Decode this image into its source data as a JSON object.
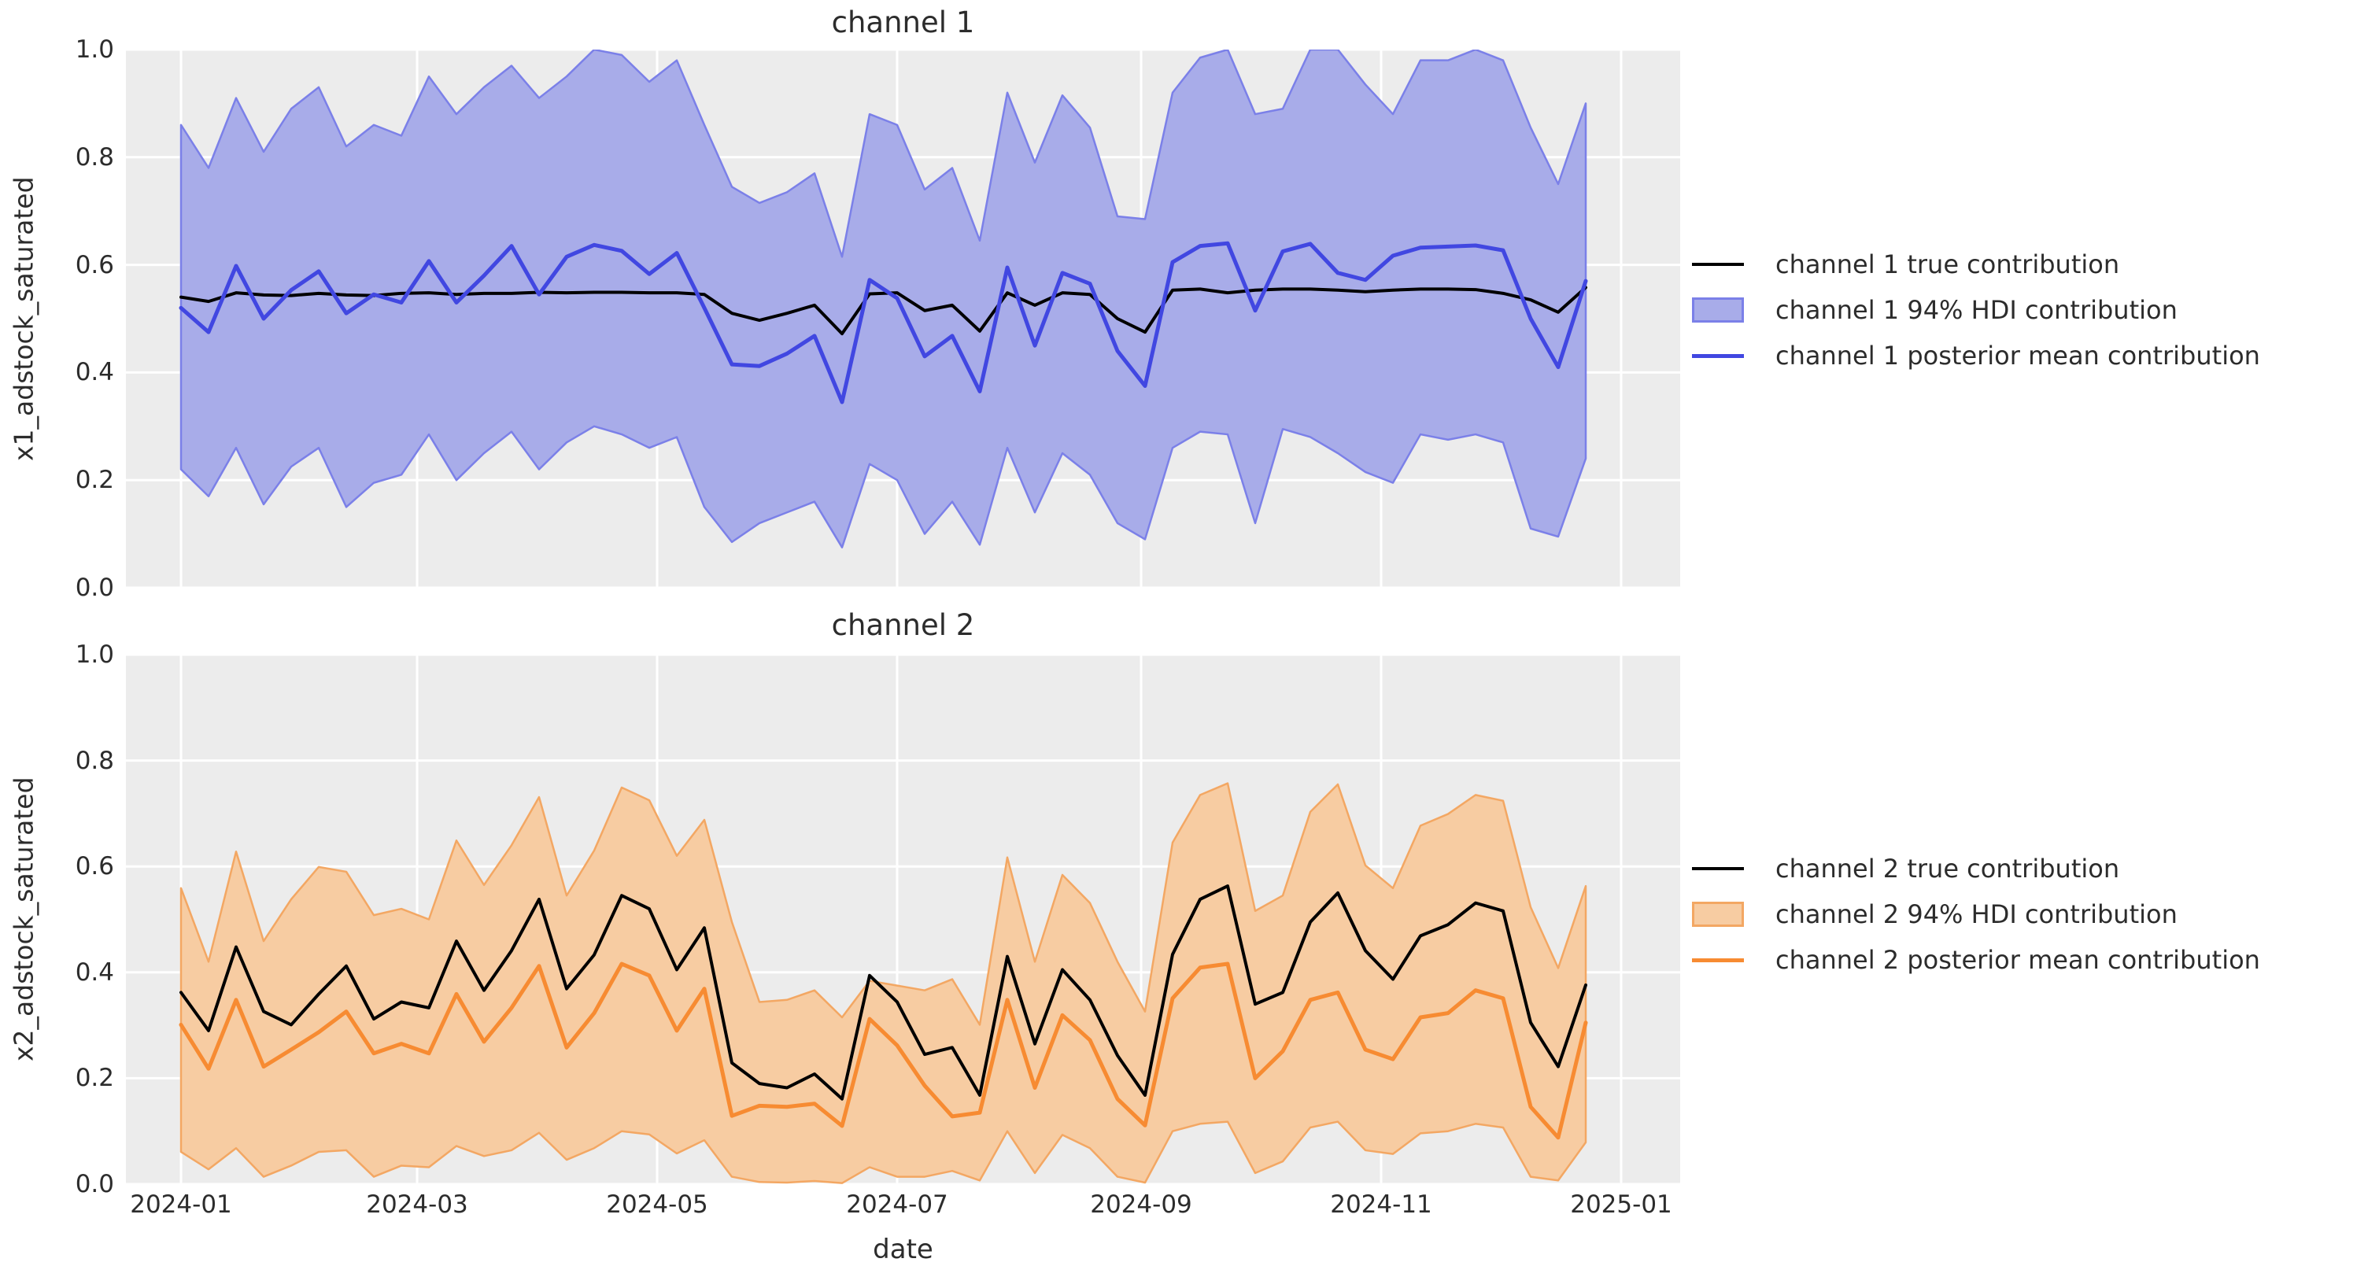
{
  "figure": {
    "background": "#ffffff",
    "plot_background": "#ececec",
    "grid_color": "#ffffff",
    "text_color": "#2c2c2c"
  },
  "xlabel": "date",
  "chart_data": [
    {
      "type": "area",
      "title": "channel 1",
      "ylabel": "x1_adstock_saturated",
      "xlabel": "",
      "ylim": [
        0,
        1
      ],
      "grid": true,
      "legend_position": "right-outside",
      "x_start_date": "2024-01-01",
      "x_step_days": 7,
      "xticks": {
        "labels": [
          "2024-01",
          "2024-03",
          "2024-05",
          "2024-07",
          "2024-09",
          "2024-11",
          "2025-01"
        ],
        "day_offsets": [
          0,
          60,
          121,
          182,
          244,
          305,
          366
        ],
        "show_labels": false
      },
      "yticks": {
        "labels": [
          "0.0",
          "0.2",
          "0.4",
          "0.6",
          "0.8",
          "1.0"
        ],
        "values": [
          0,
          0.2,
          0.4,
          0.6,
          0.8,
          1.0
        ]
      },
      "series": [
        {
          "name": "channel 1 true contribution",
          "kind": "line",
          "color": "#000000",
          "width": 4,
          "values": [
            0.54,
            0.532,
            0.548,
            0.544,
            0.543,
            0.547,
            0.544,
            0.543,
            0.547,
            0.548,
            0.545,
            0.547,
            0.547,
            0.549,
            0.548,
            0.549,
            0.549,
            0.548,
            0.548,
            0.545,
            0.51,
            0.497,
            0.51,
            0.525,
            0.472,
            0.546,
            0.548,
            0.515,
            0.525,
            0.477,
            0.548,
            0.525,
            0.548,
            0.545,
            0.5,
            0.475,
            0.553,
            0.555,
            0.548,
            0.553,
            0.555,
            0.555,
            0.553,
            0.55,
            0.553,
            0.555,
            0.555,
            0.554,
            0.547,
            0.535,
            0.512,
            0.558
          ]
        },
        {
          "name": "channel 1 94% HDI contribution",
          "kind": "band",
          "fill": "#a8ace9",
          "edge": "#7b80e8",
          "lower": [
            0.22,
            0.17,
            0.26,
            0.155,
            0.225,
            0.26,
            0.15,
            0.195,
            0.21,
            0.285,
            0.2,
            0.25,
            0.29,
            0.22,
            0.27,
            0.3,
            0.285,
            0.26,
            0.28,
            0.15,
            0.085,
            0.12,
            0.14,
            0.16,
            0.075,
            0.23,
            0.2,
            0.1,
            0.16,
            0.08,
            0.26,
            0.14,
            0.25,
            0.21,
            0.12,
            0.09,
            0.26,
            0.29,
            0.285,
            0.12,
            0.295,
            0.28,
            0.25,
            0.215,
            0.195,
            0.285,
            0.275,
            0.285,
            0.27,
            0.11,
            0.095,
            0.24
          ],
          "upper": [
            0.86,
            0.78,
            0.91,
            0.81,
            0.89,
            0.93,
            0.82,
            0.86,
            0.84,
            0.95,
            0.88,
            0.93,
            0.97,
            0.91,
            0.95,
            1.0,
            0.99,
            0.94,
            0.98,
            0.86,
            0.745,
            0.715,
            0.735,
            0.77,
            0.615,
            0.88,
            0.86,
            0.74,
            0.78,
            0.645,
            0.92,
            0.79,
            0.915,
            0.855,
            0.69,
            0.685,
            0.92,
            0.985,
            1.0,
            0.88,
            0.89,
            1.0,
            1.0,
            0.935,
            0.88,
            0.98,
            0.98,
            1.0,
            0.98,
            0.855,
            0.75,
            0.9
          ]
        },
        {
          "name": "channel 1 posterior mean contribution",
          "kind": "line",
          "color": "#4147e1",
          "width": 5,
          "values": [
            0.52,
            0.475,
            0.598,
            0.5,
            0.553,
            0.588,
            0.51,
            0.545,
            0.53,
            0.607,
            0.53,
            0.58,
            0.635,
            0.545,
            0.615,
            0.637,
            0.626,
            0.583,
            0.622,
            0.52,
            0.415,
            0.412,
            0.435,
            0.468,
            0.345,
            0.572,
            0.538,
            0.43,
            0.468,
            0.365,
            0.595,
            0.45,
            0.585,
            0.565,
            0.44,
            0.375,
            0.605,
            0.635,
            0.64,
            0.515,
            0.625,
            0.639,
            0.585,
            0.572,
            0.617,
            0.632,
            0.634,
            0.636,
            0.627,
            0.5,
            0.41,
            0.57
          ]
        }
      ]
    },
    {
      "type": "area",
      "title": "channel 2",
      "ylabel": "x2_adstock_saturated",
      "xlabel": "date",
      "ylim": [
        0,
        1
      ],
      "grid": true,
      "legend_position": "right-outside",
      "x_start_date": "2024-01-01",
      "x_step_days": 7,
      "xticks": {
        "labels": [
          "2024-01",
          "2024-03",
          "2024-05",
          "2024-07",
          "2024-09",
          "2024-11",
          "2025-01"
        ],
        "day_offsets": [
          0,
          60,
          121,
          182,
          244,
          305,
          366
        ],
        "show_labels": true
      },
      "yticks": {
        "labels": [
          "0.0",
          "0.2",
          "0.4",
          "0.6",
          "0.8",
          "1.0"
        ],
        "values": [
          0,
          0.2,
          0.4,
          0.6,
          0.8,
          1.0
        ]
      },
      "series": [
        {
          "name": "channel 2 true contribution",
          "kind": "line",
          "color": "#000000",
          "width": 4,
          "values": [
            0.362,
            0.29,
            0.448,
            0.326,
            0.301,
            0.359,
            0.412,
            0.312,
            0.344,
            0.333,
            0.459,
            0.366,
            0.441,
            0.538,
            0.369,
            0.433,
            0.545,
            0.52,
            0.405,
            0.484,
            0.229,
            0.19,
            0.182,
            0.208,
            0.161,
            0.394,
            0.344,
            0.245,
            0.258,
            0.168,
            0.43,
            0.265,
            0.405,
            0.348,
            0.243,
            0.168,
            0.434,
            0.538,
            0.563,
            0.34,
            0.362,
            0.495,
            0.55,
            0.441,
            0.387,
            0.469,
            0.49,
            0.531,
            0.516,
            0.305,
            0.222,
            0.376
          ]
        },
        {
          "name": "channel 2 94% HDI contribution",
          "kind": "band",
          "fill": "#f7cca2",
          "edge": "#f3a763",
          "lower": [
            0.061,
            0.028,
            0.068,
            0.014,
            0.035,
            0.061,
            0.064,
            0.014,
            0.035,
            0.032,
            0.072,
            0.053,
            0.064,
            0.097,
            0.046,
            0.068,
            0.1,
            0.094,
            0.058,
            0.083,
            0.014,
            0.004,
            0.003,
            0.006,
            0.002,
            0.032,
            0.014,
            0.014,
            0.025,
            0.007,
            0.1,
            0.021,
            0.093,
            0.068,
            0.014,
            0.003,
            0.1,
            0.114,
            0.118,
            0.021,
            0.043,
            0.107,
            0.118,
            0.064,
            0.057,
            0.096,
            0.1,
            0.114,
            0.107,
            0.014,
            0.007,
            0.079
          ],
          "upper": [
            0.559,
            0.42,
            0.628,
            0.459,
            0.538,
            0.599,
            0.59,
            0.508,
            0.52,
            0.5,
            0.649,
            0.565,
            0.64,
            0.731,
            0.545,
            0.63,
            0.749,
            0.725,
            0.62,
            0.688,
            0.495,
            0.344,
            0.348,
            0.366,
            0.315,
            0.384,
            0.375,
            0.366,
            0.387,
            0.301,
            0.617,
            0.42,
            0.584,
            0.531,
            0.42,
            0.326,
            0.645,
            0.735,
            0.757,
            0.516,
            0.545,
            0.703,
            0.755,
            0.602,
            0.559,
            0.677,
            0.699,
            0.735,
            0.724,
            0.523,
            0.408,
            0.563
          ]
        },
        {
          "name": "channel 2 posterior mean contribution",
          "kind": "line",
          "color": "#f78b32",
          "width": 5,
          "values": [
            0.301,
            0.218,
            0.348,
            0.222,
            0.254,
            0.287,
            0.326,
            0.247,
            0.265,
            0.247,
            0.359,
            0.269,
            0.333,
            0.412,
            0.258,
            0.323,
            0.416,
            0.394,
            0.29,
            0.369,
            0.129,
            0.148,
            0.146,
            0.152,
            0.11,
            0.312,
            0.262,
            0.186,
            0.128,
            0.135,
            0.348,
            0.182,
            0.319,
            0.272,
            0.161,
            0.111,
            0.351,
            0.409,
            0.416,
            0.2,
            0.251,
            0.348,
            0.362,
            0.254,
            0.236,
            0.315,
            0.323,
            0.366,
            0.351,
            0.146,
            0.088,
            0.305
          ]
        }
      ]
    }
  ]
}
